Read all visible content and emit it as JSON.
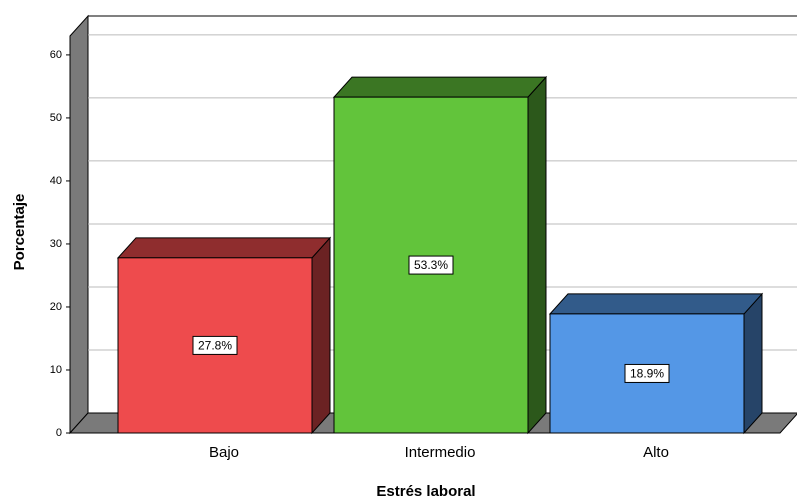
{
  "chart_data": {
    "type": "bar3d",
    "x_label": "Estrés laboral",
    "y_label": "Porcentaje",
    "categories": [
      "Bajo",
      "Intermedio",
      "Alto"
    ],
    "values": [
      27.8,
      53.3,
      18.9
    ],
    "value_labels": [
      "27.8%",
      "53.3%",
      "18.9%"
    ],
    "colors": [
      "#ee4b4d",
      "#62c43b",
      "#5497e6"
    ],
    "ylim": [
      0,
      63
    ],
    "yticks": [
      0,
      10,
      20,
      30,
      40,
      50,
      60
    ],
    "grid": true
  }
}
